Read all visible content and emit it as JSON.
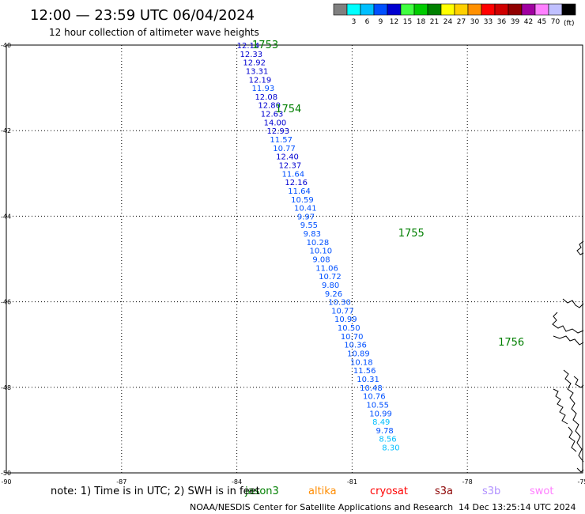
{
  "header": {
    "title": "12:00 — 23:59 UTC 06/04/2024",
    "subtitle": "12 hour collection of altimeter wave heights"
  },
  "colorbar": {
    "unit": "(ft)",
    "bins": [
      {
        "label": "",
        "color": "#808080"
      },
      {
        "label": "3",
        "color": "#00ffff"
      },
      {
        "label": "6",
        "color": "#00bfff"
      },
      {
        "label": "9",
        "color": "#0050ff"
      },
      {
        "label": "12",
        "color": "#0000d0"
      },
      {
        "label": "15",
        "color": "#40ff40"
      },
      {
        "label": "18",
        "color": "#00cc00"
      },
      {
        "label": "21",
        "color": "#008000"
      },
      {
        "label": "24",
        "color": "#ffff00"
      },
      {
        "label": "27",
        "color": "#ffd000"
      },
      {
        "label": "30",
        "color": "#ff9000"
      },
      {
        "label": "33",
        "color": "#ff0000"
      },
      {
        "label": "36",
        "color": "#d00000"
      },
      {
        "label": "39",
        "color": "#900000"
      },
      {
        "label": "42",
        "color": "#a000a0"
      },
      {
        "label": "45",
        "color": "#ff80ff"
      },
      {
        "label": "70",
        "color": "#c0c0ff"
      },
      {
        "label": "",
        "color": "#000000"
      }
    ]
  },
  "chart_data": {
    "type": "scatter",
    "xlim": [
      -90,
      -75
    ],
    "ylim": [
      -50,
      -40
    ],
    "x_ticks": [
      -90,
      -87,
      -84,
      -81,
      -78,
      -75
    ],
    "y_ticks": [
      -40,
      -42,
      -44,
      -46,
      -48,
      -50
    ],
    "grid": true,
    "points": [
      {
        "x": -84.0,
        "y": -40.0,
        "v": "12.14"
      },
      {
        "x": -83.92,
        "y": -40.2,
        "v": "12.33"
      },
      {
        "x": -83.84,
        "y": -40.4,
        "v": "12.92"
      },
      {
        "x": -83.77,
        "y": -40.6,
        "v": "13.31"
      },
      {
        "x": -83.69,
        "y": -40.8,
        "v": "12.19"
      },
      {
        "x": -83.61,
        "y": -41.0,
        "v": "11.93"
      },
      {
        "x": -83.53,
        "y": -41.2,
        "v": "12.08"
      },
      {
        "x": -83.45,
        "y": -41.4,
        "v": "12.80"
      },
      {
        "x": -83.38,
        "y": -41.6,
        "v": "12.63"
      },
      {
        "x": -83.3,
        "y": -41.8,
        "v": "14.00"
      },
      {
        "x": -83.22,
        "y": -42.0,
        "v": "12.93"
      },
      {
        "x": -83.14,
        "y": -42.2,
        "v": "11.57"
      },
      {
        "x": -83.06,
        "y": -42.4,
        "v": "10.77"
      },
      {
        "x": -82.98,
        "y": -42.6,
        "v": "12.40"
      },
      {
        "x": -82.91,
        "y": -42.8,
        "v": "12.37"
      },
      {
        "x": -82.83,
        "y": -43.0,
        "v": "11.64"
      },
      {
        "x": -82.75,
        "y": -43.2,
        "v": "12.16"
      },
      {
        "x": -82.67,
        "y": -43.4,
        "v": "11.64"
      },
      {
        "x": -82.59,
        "y": -43.6,
        "v": "10.59"
      },
      {
        "x": -82.51,
        "y": -43.8,
        "v": "10.41"
      },
      {
        "x": -82.43,
        "y": -44.0,
        "v": "9.97"
      },
      {
        "x": -82.35,
        "y": -44.2,
        "v": "9.55"
      },
      {
        "x": -82.27,
        "y": -44.4,
        "v": "9.83"
      },
      {
        "x": -82.19,
        "y": -44.6,
        "v": "10.28"
      },
      {
        "x": -82.11,
        "y": -44.8,
        "v": "10.10"
      },
      {
        "x": -82.03,
        "y": -45.0,
        "v": "9.08"
      },
      {
        "x": -81.95,
        "y": -45.2,
        "v": "11.06"
      },
      {
        "x": -81.87,
        "y": -45.4,
        "v": "10.72"
      },
      {
        "x": -81.79,
        "y": -45.6,
        "v": "9.80"
      },
      {
        "x": -81.71,
        "y": -45.8,
        "v": "9.26"
      },
      {
        "x": -81.62,
        "y": -46.0,
        "v": "10.30"
      },
      {
        "x": -81.54,
        "y": -46.2,
        "v": "10.77"
      },
      {
        "x": -81.46,
        "y": -46.4,
        "v": "10.99"
      },
      {
        "x": -81.38,
        "y": -46.6,
        "v": "10.50"
      },
      {
        "x": -81.3,
        "y": -46.8,
        "v": "10.70"
      },
      {
        "x": -81.21,
        "y": -47.0,
        "v": "10.36"
      },
      {
        "x": -81.13,
        "y": -47.2,
        "v": "10.89"
      },
      {
        "x": -81.05,
        "y": -47.4,
        "v": "10.18"
      },
      {
        "x": -80.97,
        "y": -47.6,
        "v": "11.56"
      },
      {
        "x": -80.88,
        "y": -47.8,
        "v": "10.31"
      },
      {
        "x": -80.8,
        "y": -48.0,
        "v": "10.48"
      },
      {
        "x": -80.72,
        "y": -48.2,
        "v": "10.76"
      },
      {
        "x": -80.63,
        "y": -48.4,
        "v": "10.55"
      },
      {
        "x": -80.55,
        "y": -48.6,
        "v": "10.99"
      },
      {
        "x": -80.47,
        "y": -48.8,
        "v": "8.49"
      },
      {
        "x": -80.38,
        "y": -49.0,
        "v": "9.78"
      },
      {
        "x": -80.3,
        "y": -49.2,
        "v": "8.56"
      },
      {
        "x": -80.22,
        "y": -49.4,
        "v": "8.30"
      }
    ],
    "pass_labels": [
      {
        "text": "1753",
        "x": -83.6,
        "y": -40.0
      },
      {
        "text": "1754",
        "x": -83.0,
        "y": -41.5
      },
      {
        "text": "1755",
        "x": -79.8,
        "y": -44.4
      },
      {
        "text": "1756",
        "x": -77.2,
        "y": -46.95
      }
    ]
  },
  "footer": {
    "satellites": [
      {
        "name": "jason3",
        "color": "#007f00"
      },
      {
        "name": "altika",
        "color": "#ff8c00"
      },
      {
        "name": "cryosat",
        "color": "#ff0000"
      },
      {
        "name": "s3a",
        "color": "#8b0000"
      },
      {
        "name": "s3b",
        "color": "#b090ff"
      },
      {
        "name": "swot",
        "color": "#ff80ff"
      }
    ],
    "note": "note: 1) Time is in UTC; 2) SWH is in feet",
    "credit": "NOAA/NESDIS Center for Satellite Applications and Research",
    "timestamp": "14 Dec 13:25:14 UTC 2024"
  }
}
